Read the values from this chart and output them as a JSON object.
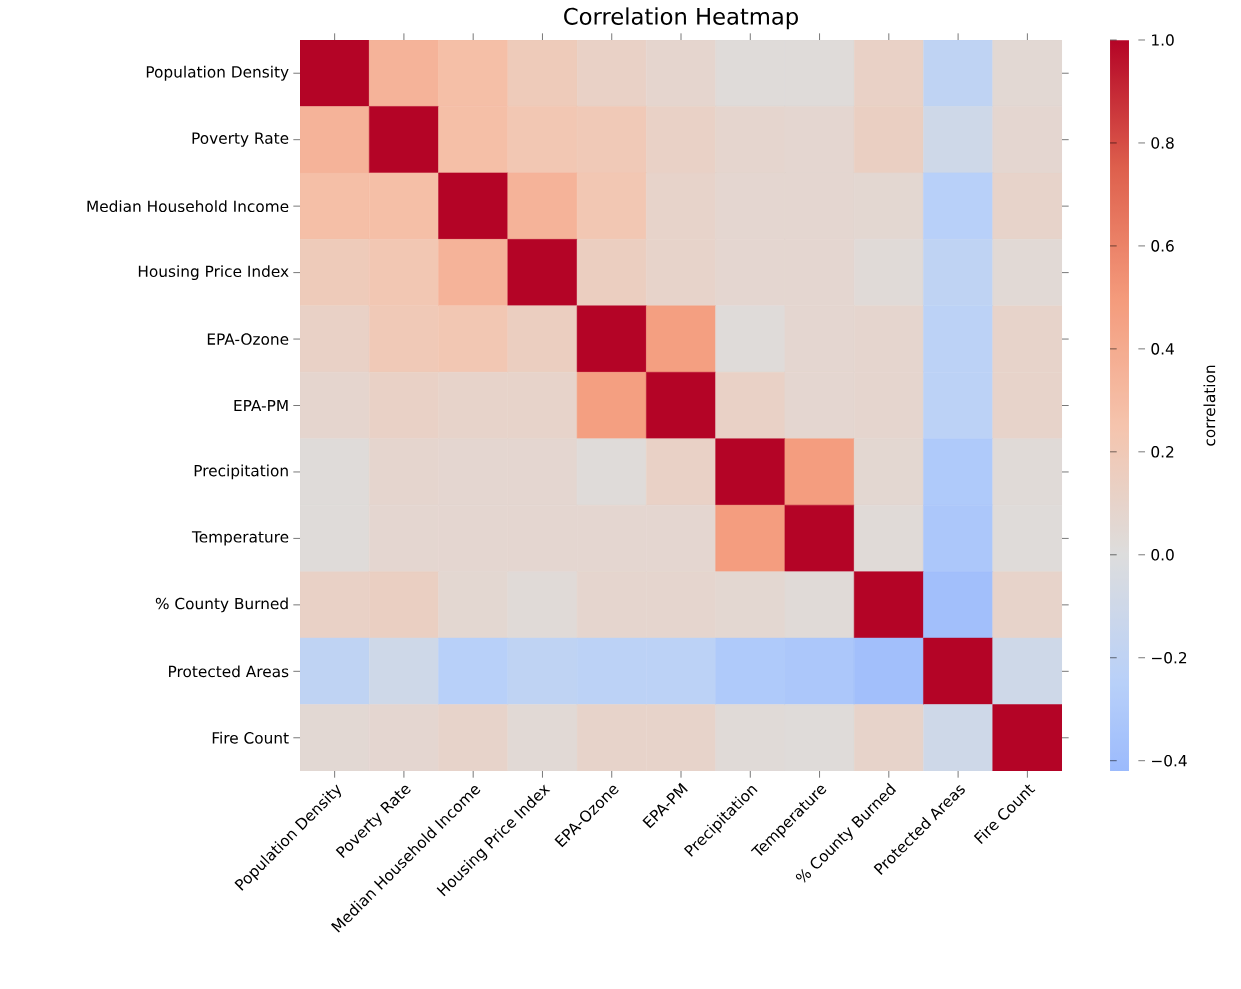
{
  "chart_data": {
    "type": "heatmap",
    "title": "Correlation Heatmap",
    "clabel": "correlation",
    "categories": [
      "Population Density",
      "Poverty Rate",
      "Median Household Income",
      "Housing Price Index",
      "EPA-Ozone",
      "EPA-PM",
      "Precipitation",
      "Temperature",
      "% County Burned",
      "Protected Areas",
      "Fire Count"
    ],
    "y_categories": [
      "Population Density",
      "Poverty Rate",
      "Median Household Income",
      "Housing Price Index",
      "EPA-Ozone",
      "EPA-PM",
      "Precipitation",
      "Temperature",
      "% County Burned",
      "Protected Areas",
      "Fire Count"
    ],
    "cells": [
      [
        1,
        0.35,
        0.28,
        0.18,
        0.12,
        0.08,
        0.02,
        0.02,
        0.12,
        -0.2,
        0.05
      ],
      [
        0.35,
        1,
        0.28,
        0.22,
        0.2,
        0.12,
        0.08,
        0.07,
        0.14,
        -0.1,
        0.07
      ],
      [
        0.28,
        0.28,
        1,
        0.35,
        0.22,
        0.1,
        0.07,
        0.07,
        0.06,
        -0.25,
        0.1
      ],
      [
        0.18,
        0.22,
        0.35,
        1,
        0.15,
        0.1,
        0.07,
        0.07,
        0.03,
        -0.2,
        0.04
      ],
      [
        0.12,
        0.2,
        0.22,
        0.15,
        1,
        0.47,
        0.02,
        0.07,
        0.08,
        -0.22,
        0.1
      ],
      [
        0.08,
        0.12,
        0.1,
        0.1,
        0.47,
        1,
        0.12,
        0.07,
        0.08,
        -0.22,
        0.1
      ],
      [
        0.02,
        0.08,
        0.07,
        0.07,
        0.02,
        0.12,
        1,
        0.48,
        0.06,
        -0.3,
        0.03
      ],
      [
        0.02,
        0.07,
        0.07,
        0.07,
        0.07,
        0.07,
        0.48,
        1,
        0.03,
        -0.32,
        0.02
      ],
      [
        0.12,
        0.14,
        0.06,
        0.03,
        0.08,
        0.08,
        0.06,
        0.03,
        1,
        -0.38,
        0.1
      ],
      [
        -0.2,
        -0.1,
        -0.25,
        -0.2,
        -0.22,
        -0.22,
        -0.3,
        -0.32,
        -0.38,
        1,
        -0.1
      ],
      [
        0.05,
        0.07,
        0.1,
        0.04,
        0.1,
        0.1,
        0.03,
        0.02,
        0.1,
        -0.1,
        1
      ]
    ],
    "clim": [
      -0.42,
      1.0
    ],
    "cticks": [
      {
        "value": -0.4,
        "label": "−0.4"
      },
      {
        "value": -0.2,
        "label": "−0.2"
      },
      {
        "value": 0,
        "label": "0.0"
      },
      {
        "value": 0.2,
        "label": "0.2"
      },
      {
        "value": 0.4,
        "label": "0.4"
      },
      {
        "value": 0.6,
        "label": "0.6"
      },
      {
        "value": 0.8,
        "label": "0.8"
      },
      {
        "value": 1,
        "label": "1.0"
      }
    ]
  }
}
